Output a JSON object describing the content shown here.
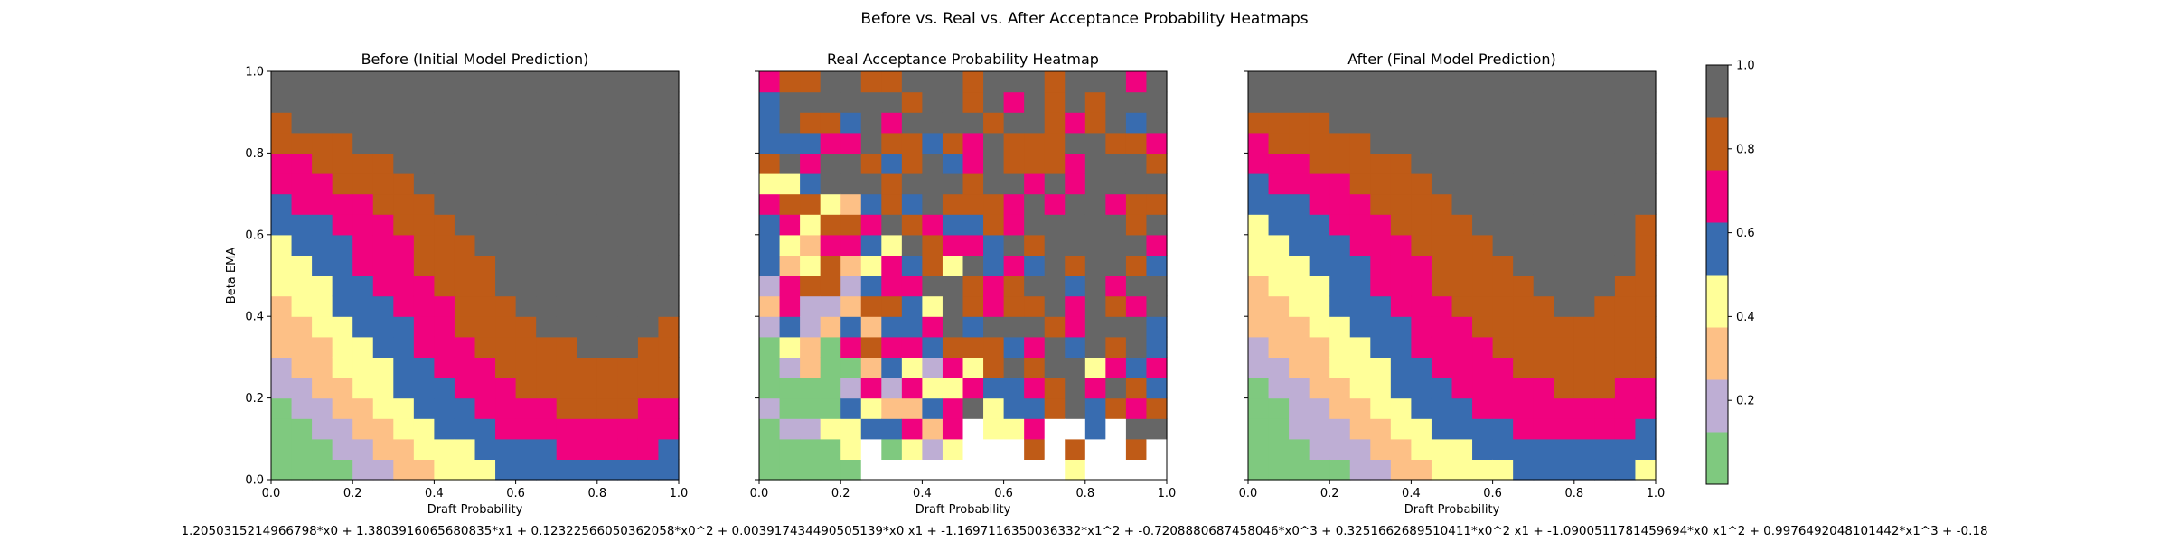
{
  "suptitle": "Before vs. Real vs. After Acceptance Probability Heatmaps",
  "equation": "1.2050315214966798*x0 + 1.3803916065680835*x1 + 0.12322566050362058*x0^2 + 0.003917434490505139*x0 x1 + -1.1697116350036332*x1^2 + -0.7208880687458046*x0^3 + 0.3251662689510411*x0^2 x1 + -1.0900511781459694*x0 x1^2 + 0.9976492048101442*x1^3 + -0.18",
  "colormap": {
    "name": "Accent",
    "bins": [
      "#7fc97f",
      "#beaed4",
      "#fdc086",
      "#ffff99",
      "#386cb0",
      "#f0027f",
      "#bf5b17",
      "#666666"
    ],
    "range": [
      0,
      1
    ],
    "ticks": [
      "0.2",
      "0.4",
      "0.6",
      "0.8",
      "1.0"
    ],
    "tick_values": [
      0.2,
      0.4,
      0.6,
      0.8,
      1.0
    ]
  },
  "axis_ticks": [
    "0.0",
    "0.2",
    "0.4",
    "0.6",
    "0.8",
    "1.0"
  ],
  "axis_tick_values": [
    0,
    0.2,
    0.4,
    0.6,
    0.8,
    1.0
  ],
  "chart_data": [
    {
      "type": "heatmap",
      "title": "Before (Initial Model Prediction)",
      "xlabel": "Draft Probability",
      "ylabel": "Beta EMA",
      "xlim": [
        0,
        1
      ],
      "ylim": [
        0,
        1
      ],
      "grid": [
        20,
        20
      ],
      "model": "before"
    },
    {
      "type": "heatmap",
      "title": "Real Acceptance Probability Heatmap",
      "xlabel": "Draft Probability",
      "ylabel": "",
      "xlim": [
        0,
        1
      ],
      "ylim": [
        0,
        1
      ],
      "grid": [
        20,
        20
      ],
      "model": "real"
    },
    {
      "type": "heatmap",
      "title": "After (Final Model Prediction)",
      "xlabel": "Draft Probability",
      "ylabel": "",
      "xlim": [
        0,
        1
      ],
      "ylim": [
        0,
        1
      ],
      "grid": [
        20,
        20
      ],
      "model": "after"
    }
  ]
}
